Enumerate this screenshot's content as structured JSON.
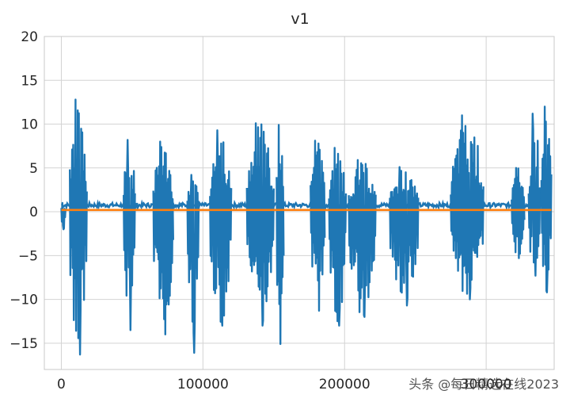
{
  "chart_data": {
    "type": "line",
    "title": "v1",
    "xlabel": "",
    "ylabel": "",
    "xlim": [
      -12000,
      348000
    ],
    "ylim": [
      -18,
      20
    ],
    "grid": true,
    "xticks": [
      0,
      100000,
      200000,
      300000
    ],
    "xtick_labels": [
      "0",
      "100000",
      "200000",
      "300000"
    ],
    "yticks": [
      -15,
      -10,
      -5,
      0,
      5,
      10,
      15,
      20
    ],
    "ytick_labels": [
      "−15",
      "−10",
      "−5",
      "0",
      "5",
      "10",
      "15",
      "20"
    ],
    "series": [
      {
        "color": "#1f77b4",
        "bursts": [
          {
            "x": [
              0,
              3000
            ],
            "max": 1.0,
            "min": -2.0
          },
          {
            "x": [
              6000,
              18000
            ],
            "max": 12.8,
            "min": -16.3
          },
          {
            "x": [
              44000,
              52000
            ],
            "max": 8.2,
            "min": -13.5
          },
          {
            "x": [
              65000,
              79000
            ],
            "max": 8.0,
            "min": -14.0
          },
          {
            "x": [
              89000,
              97000
            ],
            "max": 4.2,
            "min": -16.1
          },
          {
            "x": [
              105000,
              120000
            ],
            "max": 9.3,
            "min": -13.0
          },
          {
            "x": [
              131000,
              150000
            ],
            "max": 10.1,
            "min": -13.0
          },
          {
            "x": [
              152000,
              157000
            ],
            "max": 9.9,
            "min": -15.1
          },
          {
            "x": [
              176000,
              186000
            ],
            "max": 8.1,
            "min": -11.3
          },
          {
            "x": [
              189000,
              201000
            ],
            "max": 7.3,
            "min": -13.0
          },
          {
            "x": [
              203000,
              222000
            ],
            "max": 5.9,
            "min": -12.0
          },
          {
            "x": [
              232000,
              252000
            ],
            "max": 5.1,
            "min": -10.7
          },
          {
            "x": [
              275000,
              298000
            ],
            "max": 11.0,
            "min": -10.0
          },
          {
            "x": [
              318000,
              327000
            ],
            "max": 5.0,
            "min": -5.3
          },
          {
            "x": [
              330000,
              338000
            ],
            "max": 11.2,
            "min": -7.3
          },
          {
            "x": [
              339000,
              346000
            ],
            "max": 12.0,
            "min": -9.2
          }
        ],
        "baseline_min": 0.5,
        "baseline_max": 1.0
      },
      {
        "color": "#ff7f0e",
        "y": 0.2
      }
    ]
  },
  "watermark": "头条 @每日精选在线2023"
}
